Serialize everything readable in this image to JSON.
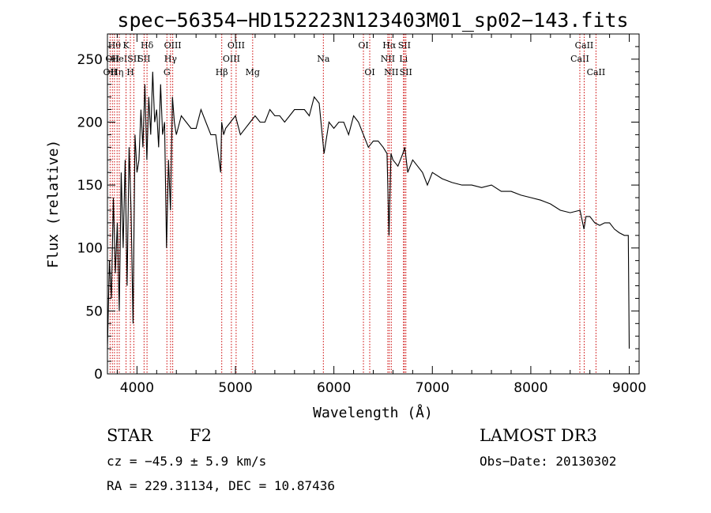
{
  "chart_data": {
    "type": "line",
    "title": "spec−56354−HD152223N123403M01_sp02−143.fits",
    "xlabel": "Wavelength (Å)",
    "ylabel": "Flux (relative)",
    "xlim": [
      3700,
      9100
    ],
    "ylim": [
      0,
      270
    ],
    "xticks": [
      4000,
      5000,
      6000,
      7000,
      8000,
      9000
    ],
    "yticks": [
      0,
      50,
      100,
      150,
      200,
      250
    ],
    "grid": false,
    "series": [
      {
        "name": "spectrum",
        "color": "#000000",
        "x": [
          3700,
          3720,
          3740,
          3760,
          3780,
          3800,
          3820,
          3840,
          3860,
          3880,
          3900,
          3920,
          3940,
          3960,
          3980,
          4000,
          4020,
          4040,
          4060,
          4080,
          4100,
          4120,
          4140,
          4160,
          4180,
          4200,
          4220,
          4240,
          4260,
          4280,
          4300,
          4320,
          4340,
          4360,
          4380,
          4400,
          4450,
          4500,
          4550,
          4600,
          4650,
          4700,
          4750,
          4800,
          4850,
          4860,
          4880,
          4900,
          4950,
          5000,
          5050,
          5100,
          5150,
          5200,
          5250,
          5300,
          5350,
          5400,
          5450,
          5500,
          5550,
          5600,
          5650,
          5700,
          5750,
          5800,
          5850,
          5900,
          5950,
          6000,
          6050,
          6100,
          6150,
          6200,
          6250,
          6300,
          6350,
          6400,
          6450,
          6500,
          6540,
          6560,
          6580,
          6600,
          6650,
          6700,
          6720,
          6750,
          6800,
          6850,
          6900,
          6950,
          7000,
          7100,
          7200,
          7300,
          7400,
          7500,
          7600,
          7700,
          7800,
          7900,
          8000,
          8100,
          8200,
          8300,
          8400,
          8500,
          8540,
          8560,
          8600,
          8650,
          8700,
          8750,
          8800,
          8850,
          8900,
          8950,
          8990,
          9000
        ],
        "y": [
          20,
          90,
          60,
          140,
          80,
          120,
          50,
          160,
          100,
          170,
          70,
          180,
          130,
          40,
          190,
          160,
          170,
          210,
          180,
          230,
          170,
          220,
          190,
          240,
          200,
          210,
          180,
          230,
          190,
          200,
          100,
          170,
          130,
          220,
          200,
          190,
          205,
          200,
          195,
          195,
          210,
          200,
          190,
          190,
          160,
          200,
          190,
          195,
          200,
          205,
          190,
          195,
          200,
          205,
          200,
          200,
          210,
          205,
          205,
          200,
          205,
          210,
          210,
          210,
          205,
          220,
          215,
          175,
          200,
          195,
          200,
          200,
          190,
          205,
          200,
          190,
          180,
          185,
          185,
          180,
          175,
          110,
          175,
          170,
          165,
          175,
          180,
          160,
          170,
          165,
          160,
          150,
          160,
          155,
          152,
          150,
          150,
          148,
          150,
          145,
          145,
          142,
          140,
          138,
          135,
          130,
          128,
          130,
          115,
          125,
          125,
          120,
          118,
          120,
          120,
          115,
          112,
          110,
          110,
          20
        ]
      }
    ],
    "lines": [
      {
        "wave": 3727,
        "label": "OII",
        "row": 3
      },
      {
        "wave": 3750,
        "label": "OII",
        "row": 2
      },
      {
        "wave": 3771,
        "label": "Hθ",
        "row": 1
      },
      {
        "wave": 3798,
        "label": "Hη",
        "row": 3
      },
      {
        "wave": 3820,
        "label": "HeI",
        "row": 2
      },
      {
        "wave": 3889,
        "label": "K",
        "row": 1
      },
      {
        "wave": 3933,
        "label": "H",
        "row": 3
      },
      {
        "wave": 3968,
        "label": "SII",
        "row": 2
      },
      {
        "wave": 4102,
        "label": "Hδ",
        "row": 1
      },
      {
        "wave": 4072,
        "label": "SII",
        "row": 2
      },
      {
        "wave": 4304,
        "label": "G",
        "row": 3
      },
      {
        "wave": 4341,
        "label": "Hγ",
        "row": 2
      },
      {
        "wave": 4363,
        "label": "OIII",
        "row": 1
      },
      {
        "wave": 4861,
        "label": "Hβ",
        "row": 3
      },
      {
        "wave": 4959,
        "label": "OIII",
        "row": 2
      },
      {
        "wave": 5007,
        "label": "OIII",
        "row": 1
      },
      {
        "wave": 5175,
        "label": "Mg",
        "row": 3
      },
      {
        "wave": 5893,
        "label": "Na",
        "row": 2
      },
      {
        "wave": 6300,
        "label": "OI",
        "row": 1
      },
      {
        "wave": 6364,
        "label": "OI",
        "row": 3
      },
      {
        "wave": 6548,
        "label": "NII",
        "row": 2
      },
      {
        "wave": 6563,
        "label": "Hα",
        "row": 1
      },
      {
        "wave": 6583,
        "label": "NII",
        "row": 3
      },
      {
        "wave": 6707,
        "label": "Li",
        "row": 2
      },
      {
        "wave": 6716,
        "label": "SII",
        "row": 1
      },
      {
        "wave": 6731,
        "label": "SII",
        "row": 3
      },
      {
        "wave": 8498,
        "label": "CaII",
        "row": 2
      },
      {
        "wave": 8542,
        "label": "CaII",
        "row": 1
      },
      {
        "wave": 8662,
        "label": "CaII",
        "row": 3
      }
    ]
  },
  "info": {
    "object_class": "STAR",
    "subclass": "F2",
    "survey": "LAMOST DR3",
    "cz": "cz = −45.9 ± 5.9 km/s",
    "obs_date": "Obs−Date: 20130302",
    "radec": "RA = 229.31134, DEC =  10.87436"
  }
}
